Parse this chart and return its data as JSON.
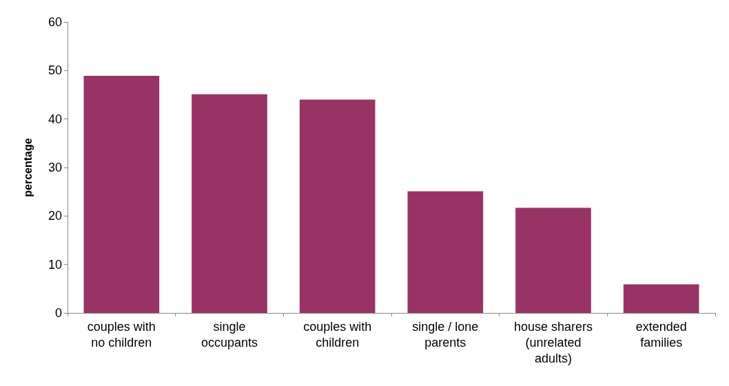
{
  "chart_data": {
    "type": "bar",
    "ylabel": "percentage",
    "categories": [
      "couples with\nno children",
      "single\noccupants",
      "couples with\nchildren",
      "single / lone\nparents",
      "house sharers\n(unrelated\nadults)",
      "extended\nfamilies"
    ],
    "values": [
      48.9,
      45.1,
      44.0,
      25.1,
      21.7,
      5.9
    ],
    "color": "#993366",
    "ylim": [
      0,
      60
    ],
    "yticks": [
      0,
      10,
      20,
      30,
      40,
      50,
      60
    ],
    "grid": false
  }
}
